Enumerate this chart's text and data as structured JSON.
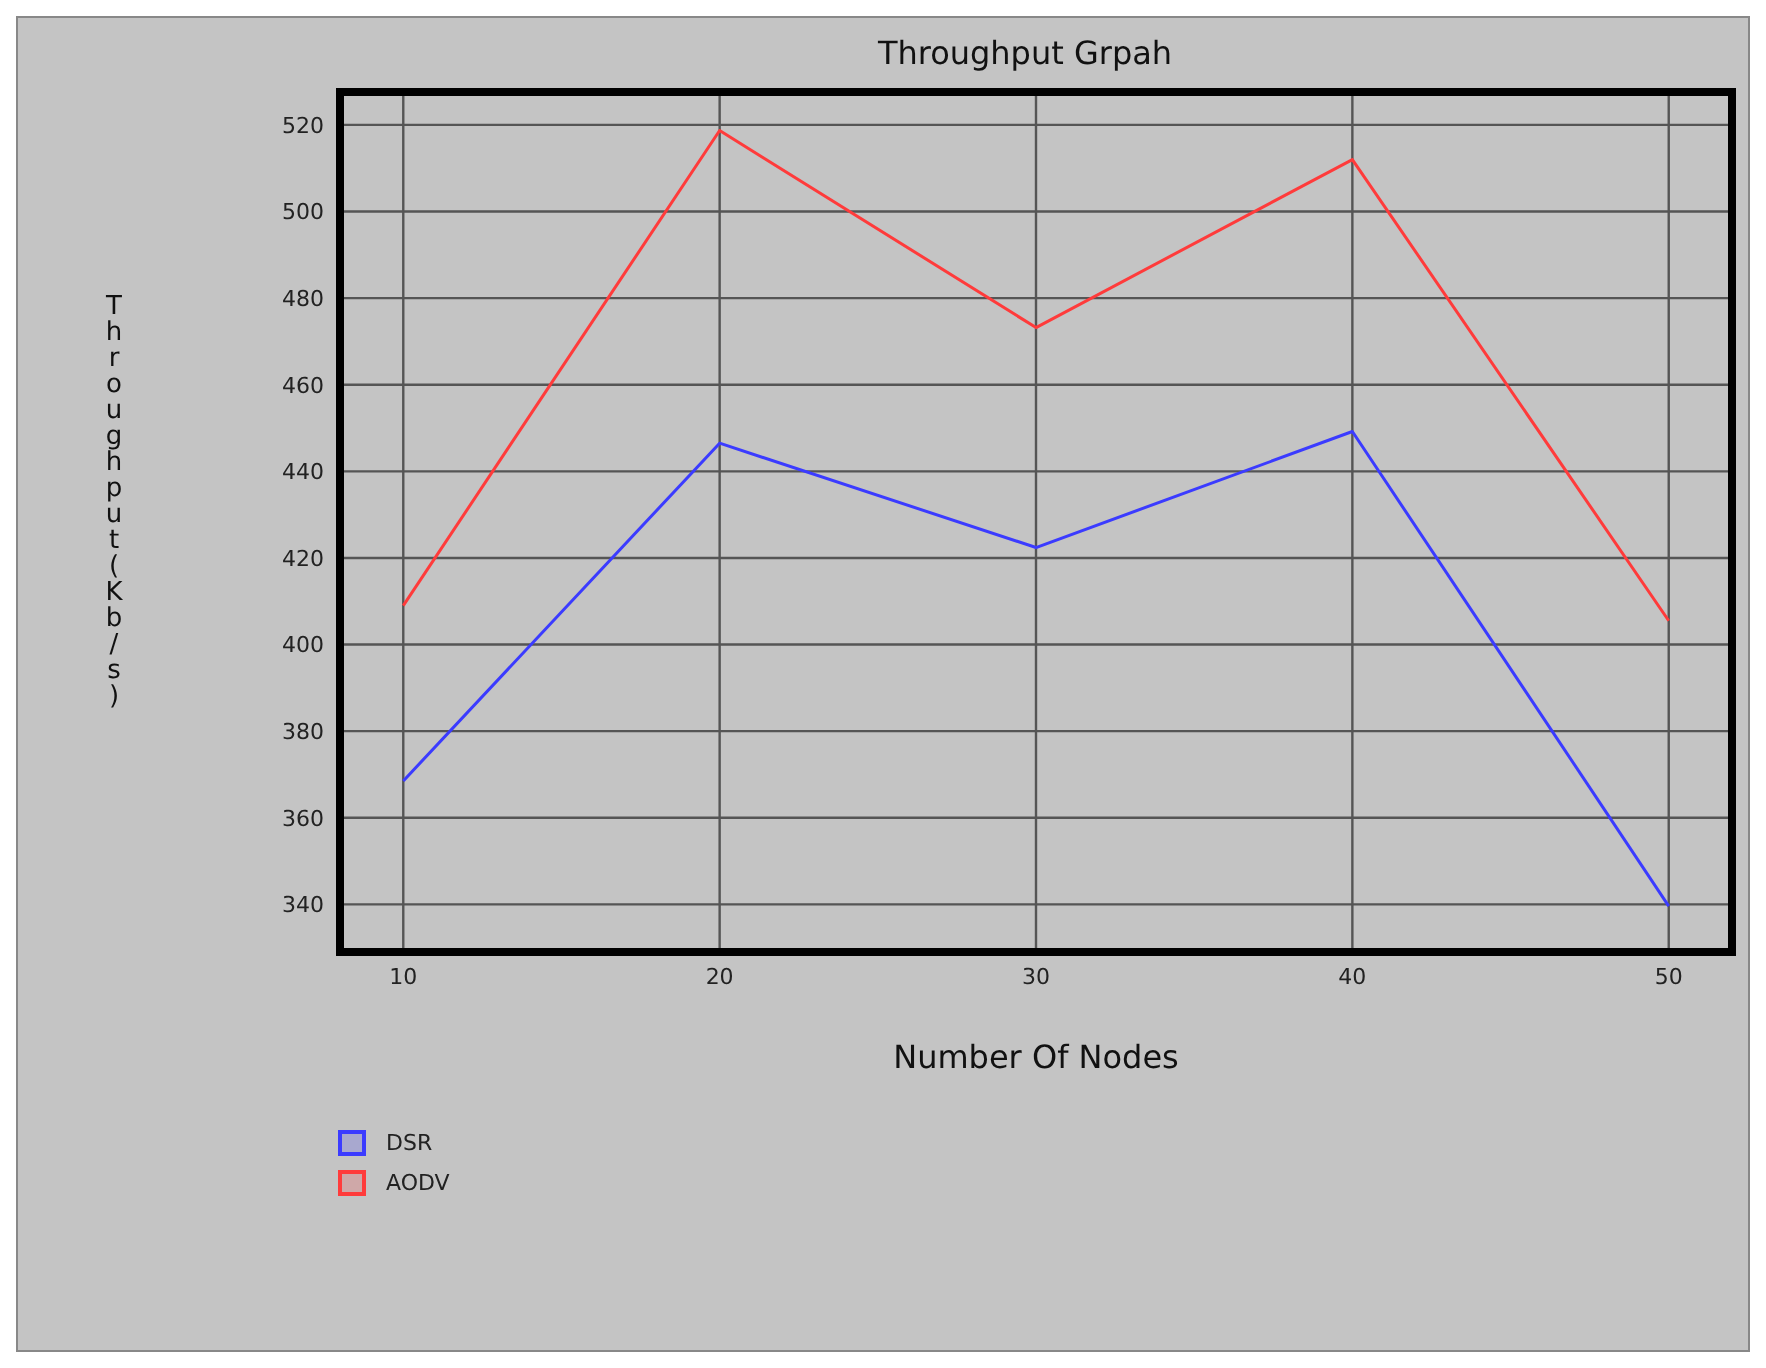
{
  "chart_data": {
    "type": "line",
    "title": "Throughput Grpah",
    "xlabel": "Number Of Nodes",
    "ylabel": "Throughput(Kb/s)",
    "x": [
      10,
      20,
      30,
      40,
      50
    ],
    "series": [
      {
        "name": "DSR",
        "color": "#3b3bff",
        "values": [
          368.5,
          446.5,
          422.4,
          449.2,
          339.6
        ]
      },
      {
        "name": "AODV",
        "color": "#ff3b3b",
        "values": [
          409,
          518.7,
          473.2,
          512,
          405.5
        ]
      }
    ],
    "xlim": [
      8,
      52
    ],
    "xticks": [
      10,
      20,
      30,
      40,
      50
    ],
    "ylim": [
      329,
      527.6
    ],
    "yticks": [
      340,
      360,
      380,
      400,
      420,
      440,
      460,
      480,
      500,
      520
    ],
    "grid": true,
    "legend": "bottom left",
    "marker": "none",
    "line_style": "solid"
  }
}
